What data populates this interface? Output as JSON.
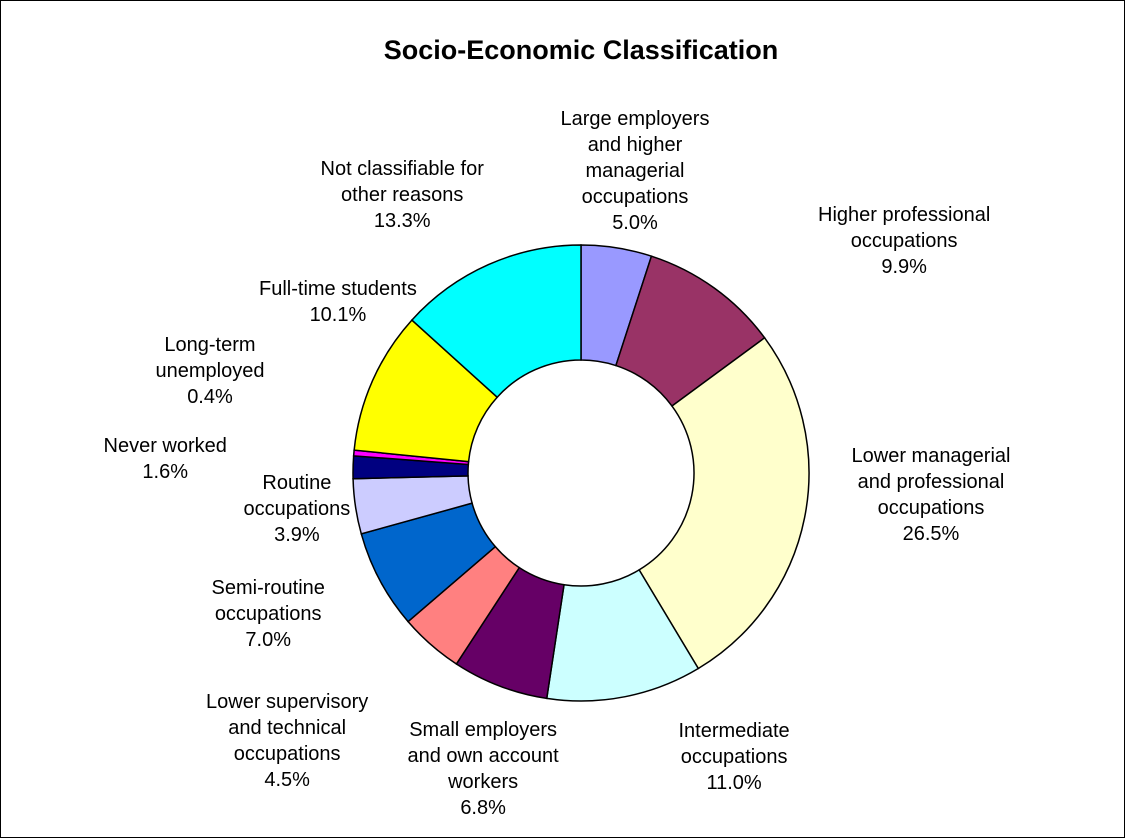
{
  "chart_data": {
    "type": "pie",
    "variant": "donut",
    "title": "Socio-Economic Classification",
    "legend": "none",
    "slices": [
      {
        "label": "Large employers and higher managerial occupations",
        "label_lines": [
          "Large employers",
          "and higher",
          "managerial",
          "occupations"
        ],
        "value": 5.0,
        "value_label": "5.0%",
        "color": "#9999ff"
      },
      {
        "label": "Higher professional occupations",
        "label_lines": [
          "Higher professional",
          "occupations"
        ],
        "value": 9.9,
        "value_label": "9.9%",
        "color": "#993366"
      },
      {
        "label": "Lower managerial and professional occupations",
        "label_lines": [
          "Lower managerial",
          "and professional",
          "occupations"
        ],
        "value": 26.5,
        "value_label": "26.5%",
        "color": "#ffffcc"
      },
      {
        "label": "Intermediate occupations",
        "label_lines": [
          "Intermediate",
          "occupations"
        ],
        "value": 11.0,
        "value_label": "11.0%",
        "color": "#ccffff"
      },
      {
        "label": "Small employers and own account workers",
        "label_lines": [
          "Small employers",
          "and own account",
          "workers"
        ],
        "value": 6.8,
        "value_label": "6.8%",
        "color": "#660066"
      },
      {
        "label": "Lower supervisory and technical occupations",
        "label_lines": [
          "Lower supervisory",
          "and technical",
          "occupations"
        ],
        "value": 4.5,
        "value_label": "4.5%",
        "color": "#ff8080"
      },
      {
        "label": "Semi-routine occupations",
        "label_lines": [
          "Semi-routine",
          "occupations"
        ],
        "value": 7.0,
        "value_label": "7.0%",
        "color": "#0066cc"
      },
      {
        "label": "Routine occupations",
        "label_lines": [
          "Routine",
          "occupations"
        ],
        "value": 3.9,
        "value_label": "3.9%",
        "color": "#ccccff"
      },
      {
        "label": "Never worked",
        "label_lines": [
          "Never worked"
        ],
        "value": 1.6,
        "value_label": "1.6%",
        "color": "#000080"
      },
      {
        "label": "Long-term unemployed",
        "label_lines": [
          "Long-term",
          "unemployed"
        ],
        "value": 0.4,
        "value_label": "0.4%",
        "color": "#ff00ff"
      },
      {
        "label": "Full-time students",
        "label_lines": [
          "Full-time students"
        ],
        "value": 10.1,
        "value_label": "10.1%",
        "color": "#ffff00"
      },
      {
        "label": "Not classifiable for other reasons",
        "label_lines": [
          "Not classifiable for",
          "other reasons"
        ],
        "value": 13.3,
        "value_label": "13.3%",
        "color": "#00ffff"
      }
    ]
  }
}
